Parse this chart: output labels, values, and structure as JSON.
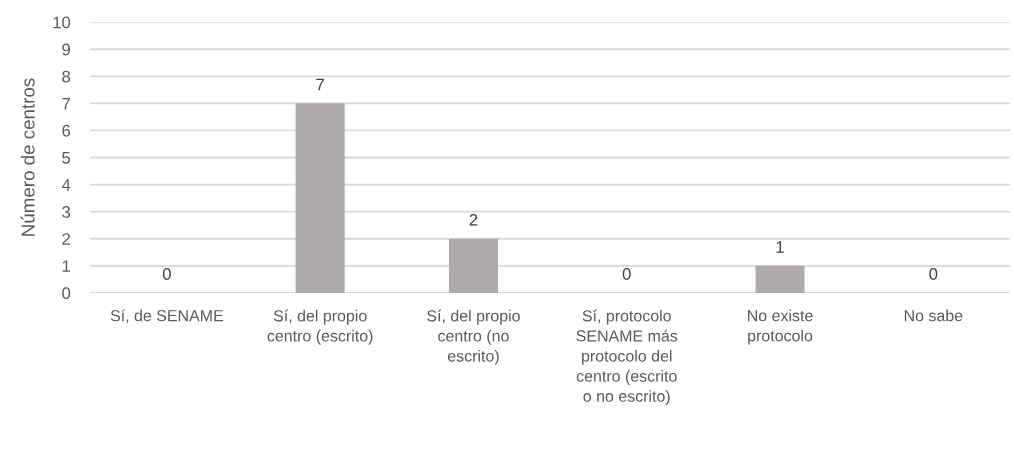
{
  "chart_data": {
    "type": "bar",
    "ylabel": "Número de centros",
    "categories": [
      "Sí, de SENAME",
      "Sí, del propio\ncentro (escrito)",
      "Sí, del propio\ncentro (no\nescrito)",
      "Sí, protocolo\nSENAME más\nprotocolo del\ncentro (escrito\no no escrito)",
      "No existe\nprotocolo",
      "No sabe"
    ],
    "values": [
      0,
      7,
      2,
      0,
      1,
      0
    ],
    "color": "#aeaaaa",
    "ylim": [
      0,
      10
    ],
    "yticks": [
      0,
      1,
      2,
      3,
      4,
      5,
      6,
      7,
      8,
      9,
      10
    ],
    "grid": "y",
    "data_labels": true,
    "legend": false
  }
}
